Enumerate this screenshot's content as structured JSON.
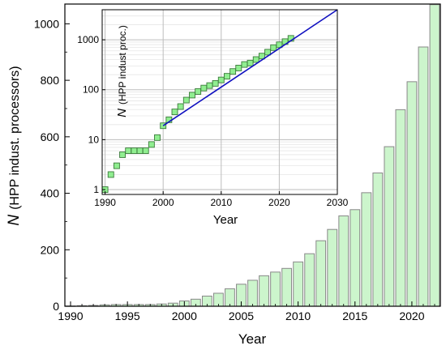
{
  "chart_data": [
    {
      "type": "bar",
      "xlabel": "Year",
      "ylabel_symbol": "N",
      "ylabel_text": "(HPP indust. processors)",
      "xlim": [
        1989.5,
        2022.5
      ],
      "ylim": [
        0,
        1070
      ],
      "xticks": [
        1990,
        1995,
        2000,
        2005,
        2010,
        2015,
        2020
      ],
      "yticks": [
        0,
        200,
        400,
        600,
        800,
        1000
      ],
      "bar_color": "#ccf5cc",
      "bar_edge_color": "#888888",
      "x": [
        1990,
        1991,
        1992,
        1993,
        1994,
        1995,
        1996,
        1997,
        1998,
        1999,
        2000,
        2001,
        2002,
        2003,
        2004,
        2005,
        2006,
        2007,
        2008,
        2009,
        2010,
        2011,
        2012,
        2013,
        2014,
        2015,
        2016,
        2017,
        2018,
        2019,
        2020,
        2021,
        2022
      ],
      "values": [
        1,
        2,
        3,
        5,
        6,
        6,
        6,
        6,
        8,
        11,
        19,
        25,
        36,
        46,
        62,
        78,
        92,
        108,
        121,
        134,
        157,
        186,
        232,
        272,
        320,
        342,
        402,
        472,
        565,
        696,
        795,
        918,
        1068
      ],
      "grid": false
    },
    {
      "type": "scatter",
      "scale_y": "log",
      "xlabel": "Year",
      "ylabel_symbol": "N",
      "ylabel_text": "(HPP indust proc.)",
      "xlim": [
        1989.5,
        2030
      ],
      "ylim": [
        0.8,
        4000
      ],
      "xticks": [
        1990,
        2000,
        2010,
        2020,
        2030
      ],
      "yticks": [
        1,
        10,
        100,
        1000
      ],
      "grid": true,
      "marker": "square",
      "marker_color": "#90ee90",
      "series": [
        {
          "x": [
            1990,
            1991,
            1992,
            1993,
            1994,
            1995,
            1996,
            1997,
            1998,
            1999,
            2000,
            2001,
            2002,
            2003,
            2004,
            2005,
            2006,
            2007,
            2008,
            2009,
            2010,
            2011,
            2012,
            2013,
            2014,
            2015,
            2016,
            2017,
            2018,
            2019,
            2020,
            2021,
            2022
          ],
          "values": [
            1,
            2,
            3,
            5,
            6,
            6,
            6,
            6,
            8,
            11,
            19,
            25,
            36,
            46,
            62,
            78,
            92,
            108,
            121,
            134,
            157,
            186,
            232,
            272,
            320,
            342,
            402,
            472,
            565,
            696,
            795,
            918,
            1068
          ]
        }
      ],
      "fit_line": {
        "color": "#1010c0",
        "x": [
          2000,
          2030
        ],
        "values": [
          19,
          4000
        ]
      }
    }
  ]
}
